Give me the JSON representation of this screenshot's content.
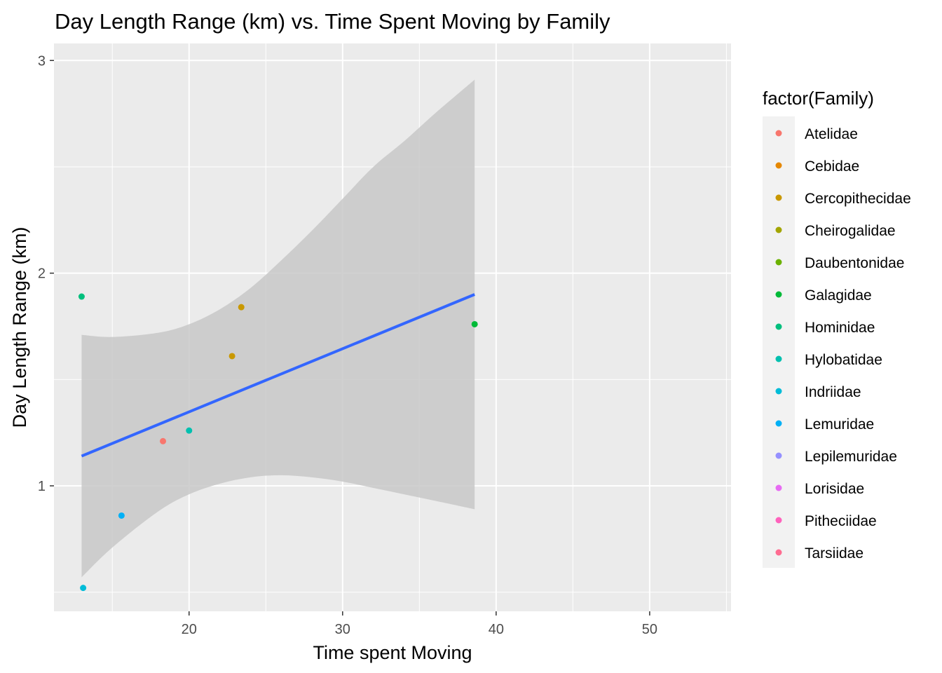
{
  "chart_data": {
    "type": "scatter",
    "title": "Day Length Range (km) vs. Time Spent Moving by Family",
    "xlabel": "Time spent Moving",
    "ylabel": "Day Length Range (km)",
    "xlim": [
      11.2,
      55.3
    ],
    "ylim": [
      0.41,
      3.08
    ],
    "x_ticks": [
      20,
      30,
      40,
      50
    ],
    "y_ticks": [
      1,
      2,
      3
    ],
    "x_tick_labels": [
      "20",
      "30",
      "40",
      "50"
    ],
    "y_tick_labels": [
      "1",
      "2",
      "3"
    ],
    "grid": true,
    "legend_title": "factor(Family)",
    "legend_position": "right",
    "colors": {
      "panel": "#ebebeb",
      "grid": "#ffffff",
      "ribbon": "#c8c8c8",
      "fit_line": "#3366ff"
    },
    "series": [
      {
        "name": "Atelidae",
        "color": "#F8766D",
        "points": [
          {
            "x": 18.3,
            "y": 1.21
          }
        ]
      },
      {
        "name": "Cebidae",
        "color": "#E58700",
        "points": []
      },
      {
        "name": "Cercopithecidae",
        "color": "#C99800",
        "points": [
          {
            "x": 22.8,
            "y": 1.61
          },
          {
            "x": 23.4,
            "y": 1.84
          }
        ]
      },
      {
        "name": "Cheirogalidae",
        "color": "#A3A500",
        "points": []
      },
      {
        "name": "Daubentonidae",
        "color": "#6BB100",
        "points": []
      },
      {
        "name": "Galagidae",
        "color": "#00BA38",
        "points": [
          {
            "x": 38.6,
            "y": 1.76
          }
        ]
      },
      {
        "name": "Hominidae",
        "color": "#00BF7D",
        "points": [
          {
            "x": 13.0,
            "y": 1.89
          }
        ]
      },
      {
        "name": "Hylobatidae",
        "color": "#00C0AF",
        "points": [
          {
            "x": 20.0,
            "y": 1.26
          }
        ]
      },
      {
        "name": "Indriidae",
        "color": "#00BCD8",
        "points": [
          {
            "x": 13.1,
            "y": 0.52
          }
        ]
      },
      {
        "name": "Lemuridae",
        "color": "#00B0F6",
        "points": [
          {
            "x": 15.6,
            "y": 0.86
          }
        ]
      },
      {
        "name": "Lepilemuridae",
        "color": "#9590FF",
        "points": []
      },
      {
        "name": "Lorisidae",
        "color": "#E76BF3",
        "points": []
      },
      {
        "name": "Pitheciidae",
        "color": "#FF62BC",
        "points": []
      },
      {
        "name": "Tarsiidae",
        "color": "#FF6C91",
        "points": []
      }
    ],
    "fit_line": {
      "x": [
        13.0,
        38.6
      ],
      "y": [
        1.14,
        1.9
      ]
    },
    "confidence_band": {
      "x": [
        13.0,
        15.0,
        18.0,
        20.0,
        22.0,
        24.0,
        26.0,
        28.0,
        30.0,
        32.0,
        34.0,
        36.0,
        38.6
      ],
      "upper": [
        1.71,
        1.7,
        1.72,
        1.76,
        1.83,
        1.93,
        2.06,
        2.2,
        2.35,
        2.5,
        2.62,
        2.75,
        2.91
      ],
      "lower": [
        0.57,
        0.71,
        0.88,
        0.96,
        1.01,
        1.04,
        1.05,
        1.04,
        1.02,
        0.99,
        0.96,
        0.93,
        0.89
      ]
    }
  }
}
